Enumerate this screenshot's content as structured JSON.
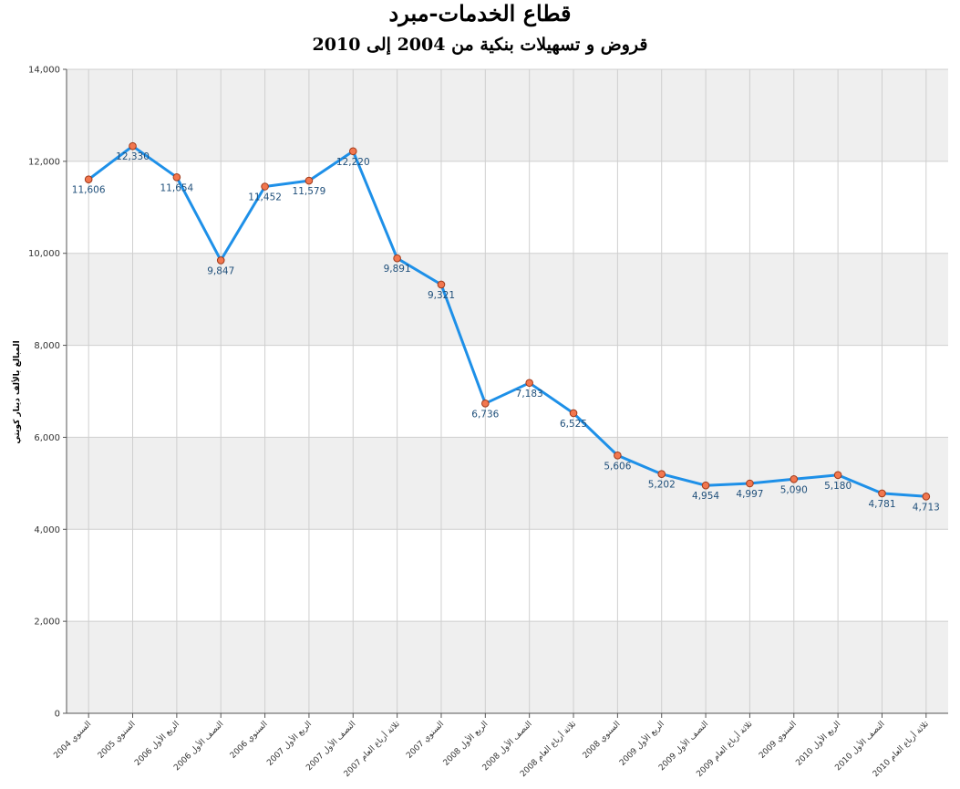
{
  "chart_data": {
    "type": "line",
    "title": "قطاع الخدمات-مبرد",
    "subtitle": "قروض و تسهيلات بنكية من 2004 إلى 2010",
    "xlabel": "",
    "ylabel": "المبالغ بالألف دينار كويتي",
    "ylim": [
      0,
      14000
    ],
    "yticks": [
      0,
      2000,
      4000,
      6000,
      8000,
      10000,
      12000,
      14000
    ],
    "ytick_labels": [
      "0",
      "2,000",
      "4,000",
      "6,000",
      "8,000",
      "10,000",
      "12,000",
      "14,000"
    ],
    "grid": true,
    "legend": "none",
    "categories": [
      "السنوي 2004",
      "السنوي 2005",
      "الربع الأول 2006",
      "النصف الأول 2006",
      "السنوي 2006",
      "الربع الأول 2007",
      "النصف الأول 2007",
      "ثلاثة أرباع العام 2007",
      "السنوي 2007",
      "الربع الأول 2008",
      "النصف الأول 2008",
      "ثلاثة أرباع العام 2008",
      "السنوي 2008",
      "الربع الأول 2009",
      "النصف الأول 2009",
      "ثلاثة أرباع العام 2009",
      "السنوي 2009",
      "الربع الأول 2010",
      "النصف الأول 2010",
      "ثلاثة أرباع العام 2010"
    ],
    "values": [
      11606,
      12330,
      11654,
      9847,
      11452,
      11579,
      12220,
      9891,
      9321,
      6736,
      7183,
      6525,
      5606,
      5202,
      4954,
      4997,
      5090,
      5180,
      4781,
      4713
    ],
    "value_labels": [
      "11,606",
      "12,330",
      "11,654",
      "9,847",
      "11,452",
      "11,579",
      "12,220",
      "9,891",
      "9,321",
      "6,736",
      "7,183",
      "6,525",
      "5,606",
      "5,202",
      "4,954",
      "4,997",
      "5,090",
      "5,180",
      "4,781",
      "4,713"
    ],
    "colors": {
      "line": "#1e90e8",
      "marker_fill": "#f2774f",
      "marker_stroke": "#a03a1a",
      "band": "#efefef",
      "grid": "#cfcfcf",
      "axis": "#555555"
    }
  }
}
